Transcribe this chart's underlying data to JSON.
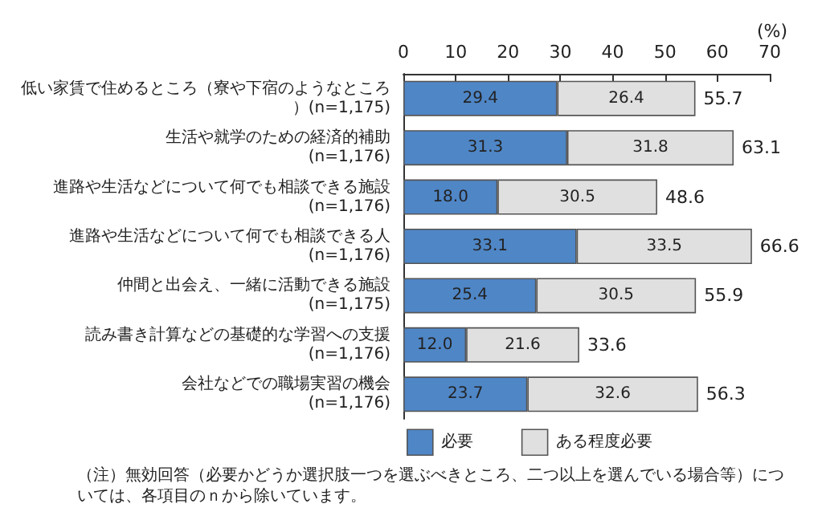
{
  "chart_data": {
    "type": "bar",
    "orientation": "horizontal",
    "stacked": true,
    "xlabel": "(%)",
    "categories": [
      "低い家賃で住めるところ（寮や下宿のようなところ）(n=1,175)",
      "生活や就学のための経済的補助\n(n=1,176)",
      "進路や生活などについて何でも相談できる施設\n(n=1,176)",
      "進路や生活などについて何でも相談できる人\n(n=1,176)",
      "仲間と出会え、一緒に活動できる施設\n(n=1,175)",
      "読み書き計算などの基礎的な学習への支援\n(n=1,176)",
      "会社などでの職場実習の機会\n(n=1,176)"
    ],
    "series": [
      {
        "name": "必要",
        "color": "#4f86c6",
        "values": [
          29.4,
          31.3,
          18.0,
          33.1,
          25.4,
          12.0,
          23.7
        ],
        "value_labels": [
          "29.4",
          "31.3",
          "18.0",
          "33.1",
          "25.4",
          "12.0",
          "23.7"
        ]
      },
      {
        "name": "ある程度必要",
        "color": "#e0e0e0",
        "values": [
          26.4,
          31.8,
          30.5,
          33.5,
          30.5,
          21.6,
          32.6
        ],
        "value_labels": [
          "26.4",
          "31.8",
          "30.5",
          "33.5",
          "30.5",
          "21.6",
          "32.6"
        ]
      }
    ],
    "totals": [
      "55.7",
      "63.1",
      "48.6",
      "66.6",
      "55.9",
      "33.6",
      "56.3"
    ],
    "xlim": [
      0,
      70
    ],
    "xticks": [
      0,
      10,
      20,
      30,
      40,
      50,
      60,
      70
    ],
    "legend": "bottom",
    "annotations": [
      "（注）無効回答（必要かどうか選択肢一つを選ぶべきところ、二つ以上を選んでいる場合等）については、各項目のｎから除いています。"
    ]
  }
}
